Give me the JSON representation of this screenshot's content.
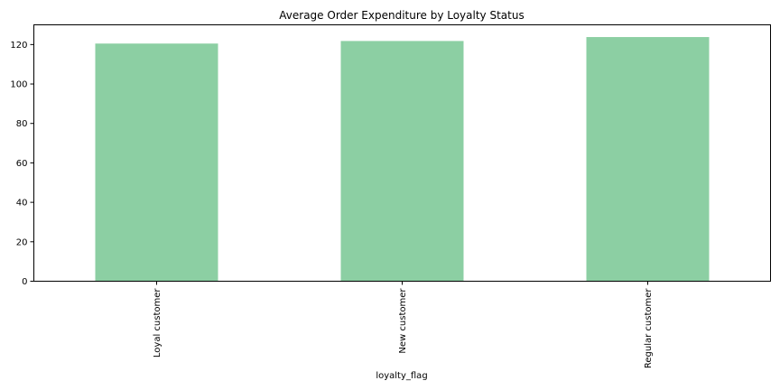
{
  "chart_data": {
    "type": "bar",
    "title": "Average Order Expenditure by Loyalty Status",
    "xlabel": "loyalty_flag",
    "ylabel": "",
    "categories": [
      "Loyal customer",
      "New customer",
      "Regular customer"
    ],
    "values": [
      120.5,
      121.8,
      123.8
    ],
    "ylim": [
      0,
      130
    ],
    "yticks": [
      0,
      20,
      40,
      60,
      80,
      100,
      120
    ],
    "grid": false,
    "legend": "none",
    "bar_color": "#8ccfa3"
  }
}
